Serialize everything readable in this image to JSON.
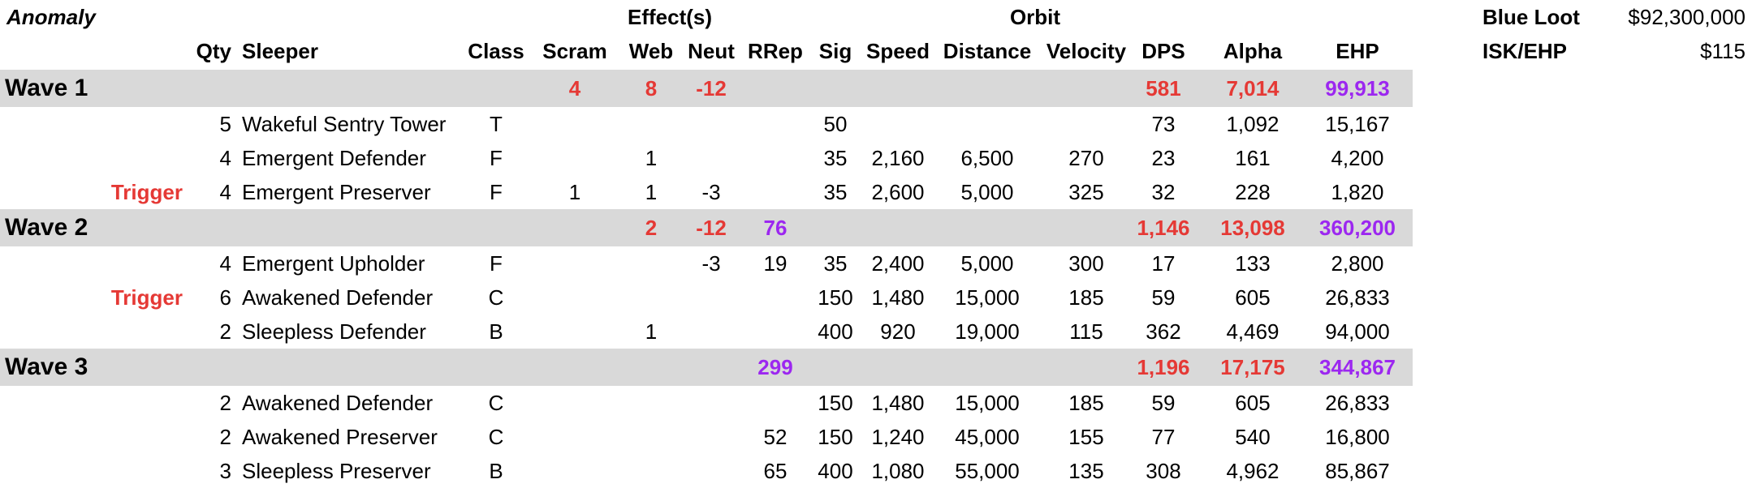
{
  "header": {
    "anomaly": "Anomaly",
    "effects": "Effect(s)",
    "orbit": "Orbit",
    "columns": {
      "qty": "Qty",
      "sleeper": "Sleeper",
      "class": "Class",
      "scram": "Scram",
      "web": "Web",
      "neut": "Neut",
      "rrep": "RRep",
      "sig": "Sig",
      "speed": "Speed",
      "distance": "Distance",
      "velocity": "Velocity",
      "dps": "DPS",
      "alpha": "Alpha",
      "ehp": "EHP"
    }
  },
  "summary": {
    "blue_loot_label": "Blue Loot",
    "blue_loot_value": "$92,300,000",
    "isk_ehp_label": "ISK/EHP",
    "isk_ehp_value": "$115"
  },
  "waves": [
    {
      "name": "Wave 1",
      "scram": "4",
      "web": "8",
      "neut": "-12",
      "rrep": "",
      "dps": "581",
      "alpha": "7,014",
      "ehp": "99,913",
      "rows": [
        {
          "trigger": "",
          "qty": "5",
          "sleeper": "Wakeful Sentry Tower",
          "class": "T",
          "scram": "",
          "web": "",
          "neut": "",
          "rrep": "",
          "sig": "50",
          "speed": "",
          "distance": "",
          "velocity": "",
          "dps": "73",
          "alpha": "1,092",
          "ehp": "15,167"
        },
        {
          "trigger": "",
          "qty": "4",
          "sleeper": "Emergent Defender",
          "class": "F",
          "scram": "",
          "web": "1",
          "neut": "",
          "rrep": "",
          "sig": "35",
          "speed": "2,160",
          "distance": "6,500",
          "velocity": "270",
          "dps": "23",
          "alpha": "161",
          "ehp": "4,200"
        },
        {
          "trigger": "Trigger",
          "qty": "4",
          "sleeper": "Emergent Preserver",
          "class": "F",
          "scram": "1",
          "web": "1",
          "neut": "-3",
          "rrep": "",
          "sig": "35",
          "speed": "2,600",
          "distance": "5,000",
          "velocity": "325",
          "dps": "32",
          "alpha": "228",
          "ehp": "1,820"
        }
      ]
    },
    {
      "name": "Wave 2",
      "scram": "",
      "web": "2",
      "neut": "-12",
      "rrep": "76",
      "dps": "1,146",
      "alpha": "13,098",
      "ehp": "360,200",
      "rows": [
        {
          "trigger": "",
          "qty": "4",
          "sleeper": "Emergent Upholder",
          "class": "F",
          "scram": "",
          "web": "",
          "neut": "-3",
          "rrep": "19",
          "sig": "35",
          "speed": "2,400",
          "distance": "5,000",
          "velocity": "300",
          "dps": "17",
          "alpha": "133",
          "ehp": "2,800"
        },
        {
          "trigger": "Trigger",
          "qty": "6",
          "sleeper": "Awakened Defender",
          "class": "C",
          "scram": "",
          "web": "",
          "neut": "",
          "rrep": "",
          "sig": "150",
          "speed": "1,480",
          "distance": "15,000",
          "velocity": "185",
          "dps": "59",
          "alpha": "605",
          "ehp": "26,833"
        },
        {
          "trigger": "",
          "qty": "2",
          "sleeper": "Sleepless Defender",
          "class": "B",
          "scram": "",
          "web": "1",
          "neut": "",
          "rrep": "",
          "sig": "400",
          "speed": "920",
          "distance": "19,000",
          "velocity": "115",
          "dps": "362",
          "alpha": "4,469",
          "ehp": "94,000"
        }
      ]
    },
    {
      "name": "Wave 3",
      "scram": "",
      "web": "",
      "neut": "",
      "rrep": "299",
      "dps": "1,196",
      "alpha": "17,175",
      "ehp": "344,867",
      "rows": [
        {
          "trigger": "",
          "qty": "2",
          "sleeper": "Awakened Defender",
          "class": "C",
          "scram": "",
          "web": "",
          "neut": "",
          "rrep": "",
          "sig": "150",
          "speed": "1,480",
          "distance": "15,000",
          "velocity": "185",
          "dps": "59",
          "alpha": "605",
          "ehp": "26,833"
        },
        {
          "trigger": "",
          "qty": "2",
          "sleeper": "Awakened Preserver",
          "class": "C",
          "scram": "",
          "web": "",
          "neut": "",
          "rrep": "52",
          "sig": "150",
          "speed": "1,240",
          "distance": "45,000",
          "velocity": "155",
          "dps": "77",
          "alpha": "540",
          "ehp": "16,800"
        },
        {
          "trigger": "",
          "qty": "3",
          "sleeper": "Sleepless Preserver",
          "class": "B",
          "scram": "",
          "web": "",
          "neut": "",
          "rrep": "65",
          "sig": "400",
          "speed": "1,080",
          "distance": "55,000",
          "velocity": "135",
          "dps": "308",
          "alpha": "4,962",
          "ehp": "85,867"
        }
      ]
    }
  ]
}
